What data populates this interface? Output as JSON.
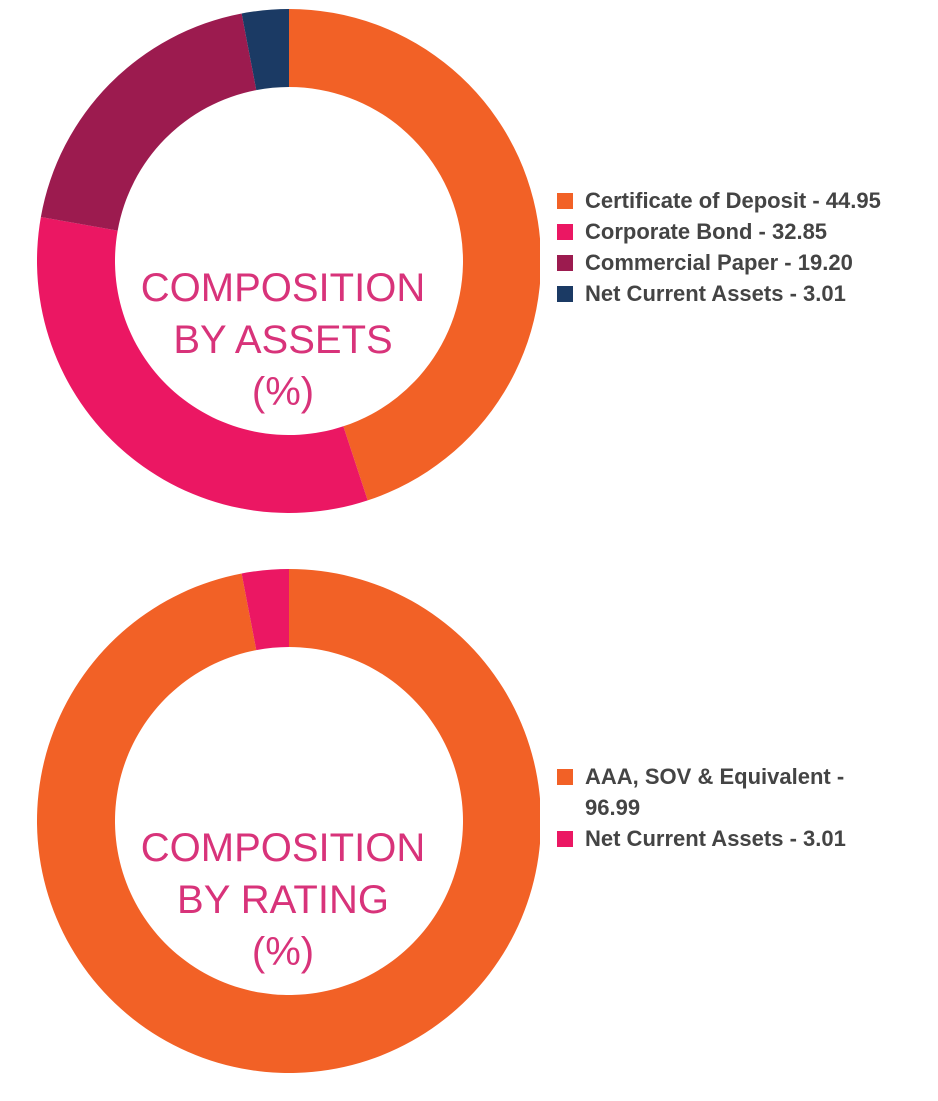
{
  "colors": {
    "orange": "#f26126",
    "pink": "#eb1763",
    "maroon": "#9c1b4f",
    "navy": "#1b3a64",
    "center_text": "#d8337a",
    "legend_text": "#444444"
  },
  "chart_data": [
    {
      "type": "pie",
      "donut": true,
      "center_label": [
        "COMPOSITION",
        "BY ASSETS",
        "(%)"
      ],
      "legend_position": "right",
      "slices": [
        {
          "label": "Certificate of Deposit - 44.95",
          "value": 44.95,
          "color": "#f26126"
        },
        {
          "label": "Corporate Bond - 32.85",
          "value": 32.85,
          "color": "#eb1763"
        },
        {
          "label": "Commercial Paper - 19.20",
          "value": 19.2,
          "color": "#9c1b4f"
        },
        {
          "label": "Net Current Assets - 3.01",
          "value": 3.01,
          "color": "#1b3a64"
        }
      ]
    },
    {
      "type": "pie",
      "donut": true,
      "center_label": [
        "COMPOSITION",
        "BY RATING",
        "(%)"
      ],
      "legend_position": "right",
      "slices": [
        {
          "label": "AAA, SOV & Equivalent - 96.99",
          "value": 96.99,
          "color": "#f26126"
        },
        {
          "label": "Net Current Assets - 3.01",
          "value": 3.01,
          "color": "#eb1763"
        }
      ]
    }
  ]
}
